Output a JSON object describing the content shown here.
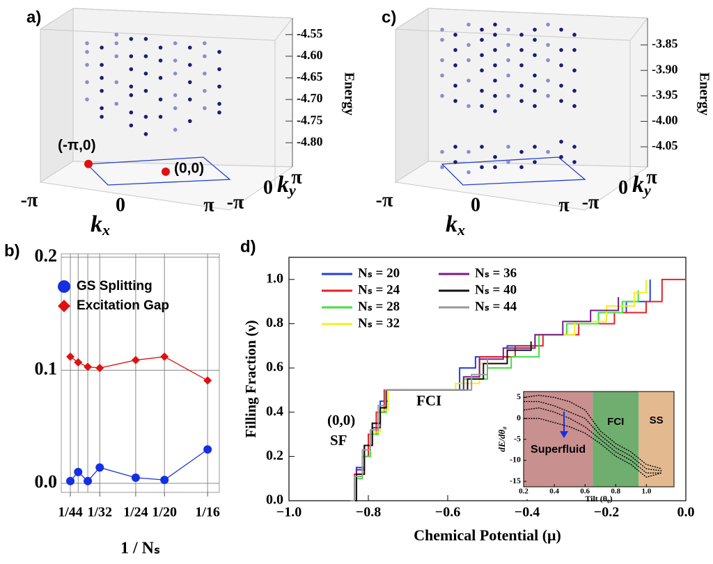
{
  "chart_data": [
    {
      "type": "scatter",
      "panel_label": "a)",
      "ylabel": "Energy",
      "ylim": [
        -4.88,
        -4.515
      ],
      "yticks": [
        {
          "value": -4.55,
          "label": "-4.55"
        },
        {
          "value": -4.6,
          "label": "-4.60"
        },
        {
          "value": -4.65,
          "label": "-4.65"
        },
        {
          "value": -4.7,
          "label": "-4.70"
        },
        {
          "value": -4.75,
          "label": "-4.75"
        },
        {
          "value": -4.8,
          "label": "-4.80"
        }
      ],
      "kx_ticks": [
        "-π",
        "0",
        "π"
      ],
      "ky_ticks": [
        "-π",
        "0",
        "π"
      ],
      "xlabel": "k",
      "xlabel_sub": "x",
      "zlabel": "k",
      "zlabel_sub": "y",
      "columns": [
        {
          "color": "#8c8cd0",
          "values": [
            -4.57,
            -4.59,
            -4.62,
            -4.66,
            -4.7
          ]
        },
        {
          "color": "#1c1c78",
          "values": [
            -4.58,
            -4.62,
            -4.65,
            -4.68,
            -4.72,
            -4.74
          ]
        },
        {
          "color": "#8c8cd0",
          "values": [
            -4.55,
            -4.57,
            -4.6,
            -4.66,
            -4.71
          ]
        },
        {
          "color": "#1c1c78",
          "values": [
            -4.56,
            -4.6,
            -4.63,
            -4.67,
            -4.69,
            -4.73,
            -4.76
          ]
        },
        {
          "color": "#1c1c78",
          "values": [
            -4.56,
            -4.6,
            -4.64,
            -4.68,
            -4.74,
            -4.78
          ]
        },
        {
          "color": "#1c1c78",
          "values": [
            -4.58,
            -4.61,
            -4.65,
            -4.7,
            -4.74
          ]
        },
        {
          "color": "#8c8cd0",
          "values": [
            -4.57,
            -4.61,
            -4.64,
            -4.69,
            -4.72,
            -4.77
          ]
        },
        {
          "color": "#1c1c78",
          "values": [
            -4.58,
            -4.62,
            -4.66,
            -4.7,
            -4.75
          ]
        },
        {
          "color": "#8c8cd0",
          "values": [
            -4.57,
            -4.6,
            -4.64,
            -4.68,
            -4.72
          ]
        },
        {
          "color": "#1c1c78",
          "values": [
            -4.59,
            -4.63,
            -4.67,
            -4.71,
            -4.73
          ]
        }
      ],
      "ground_states": [
        {
          "label": "(-π,0)",
          "value": -4.849,
          "color": "#e01010"
        },
        {
          "label": "(0,0)",
          "value": -4.867,
          "color": "#e01010"
        }
      ]
    },
    {
      "type": "line",
      "panel_label": "b)",
      "xlabel": "1 / Nₛ",
      "x": [
        0.02273,
        0.025,
        0.02778,
        0.03125,
        0.04167,
        0.05,
        0.0625
      ],
      "series": [
        {
          "name": "GS Splitting",
          "color": "#1530e0",
          "marker": "circle",
          "values": [
            0.002,
            0.01,
            0.002,
            0.014,
            0.005,
            0.003,
            0.03
          ]
        },
        {
          "name": "Excitation Gap",
          "color": "#e01010",
          "marker": "diamond",
          "values": [
            0.112,
            0.107,
            0.103,
            0.102,
            0.109,
            0.112,
            0.091
          ]
        }
      ],
      "xlim": [
        0.0201,
        0.0659
      ],
      "ylim": [
        -0.008,
        0.203
      ],
      "xticks": [
        {
          "value": 0.02273,
          "label": "1/44"
        },
        {
          "value": 0.03125,
          "label": "1/32"
        },
        {
          "value": 0.04167,
          "label": "1/24"
        },
        {
          "value": 0.05,
          "label": "1/20"
        },
        {
          "value": 0.0625,
          "label": "1/16"
        }
      ],
      "yticks": [
        {
          "value": 0,
          "label": "0.0"
        },
        {
          "value": 0.1,
          "label": "0.1"
        },
        {
          "value": 0.2,
          "label": "0.2"
        }
      ],
      "grid": true
    },
    {
      "type": "scatter",
      "panel_label": "c)",
      "ylabel": "Energy",
      "ylim": [
        -4.11,
        -3.8
      ],
      "yticks": [
        {
          "value": -3.85,
          "label": "-3.85"
        },
        {
          "value": -3.9,
          "label": "-3.90"
        },
        {
          "value": -3.95,
          "label": "-3.95"
        },
        {
          "value": -4.0,
          "label": "-4.00"
        },
        {
          "value": -4.05,
          "label": "-4.05"
        }
      ],
      "kx_ticks": [
        "-π",
        "0",
        "π"
      ],
      "ky_ticks": [
        "-π",
        "0",
        "π"
      ],
      "xlabel": "k",
      "xlabel_sub": "x",
      "zlabel": "k",
      "zlabel_sub": "y",
      "columns": [
        {
          "color": "#8c8cd0",
          "values": [
            -3.82,
            -3.84,
            -3.88,
            -3.91,
            -3.95,
            -4.06,
            -4.09
          ]
        },
        {
          "color": "#1c1c78",
          "values": [
            -3.83,
            -3.86,
            -3.89,
            -3.93,
            -3.96,
            -4.05,
            -4.08
          ]
        },
        {
          "color": "#8c8cd0",
          "values": [
            -3.81,
            -3.85,
            -3.88,
            -3.92,
            -3.97,
            -4.06,
            -4.1
          ]
        },
        {
          "color": "#1c1c78",
          "values": [
            -3.82,
            -3.84,
            -3.87,
            -3.9,
            -3.94,
            -3.97,
            -4.05,
            -4.09
          ]
        },
        {
          "color": "#1c1c78",
          "values": [
            -3.81,
            -3.83,
            -3.86,
            -3.89,
            -3.92,
            -3.95,
            -3.98,
            -4.07,
            -4.09
          ]
        },
        {
          "color": "#8c8cd0",
          "values": [
            -3.82,
            -3.85,
            -3.88,
            -3.91,
            -3.95,
            -4.05,
            -4.08
          ]
        },
        {
          "color": "#1c1c78",
          "values": [
            -3.83,
            -3.86,
            -3.89,
            -3.93,
            -3.96,
            -4.06,
            -4.09
          ]
        },
        {
          "color": "#1c1c78",
          "values": [
            -3.82,
            -3.84,
            -3.87,
            -3.91,
            -3.94,
            -3.97,
            -4.05,
            -4.08
          ]
        },
        {
          "color": "#8c8cd0",
          "values": [
            -3.81,
            -3.85,
            -3.88,
            -3.92,
            -3.95,
            -4.06
          ]
        },
        {
          "color": "#1c1c78",
          "values": [
            -3.82,
            -3.86,
            -3.89,
            -3.93,
            -3.96,
            -4.04,
            -4.07
          ]
        },
        {
          "color": "#1c1c78",
          "values": [
            -3.83,
            -3.86,
            -3.9,
            -3.94,
            -3.97,
            -4.05,
            -4.08
          ]
        }
      ]
    },
    {
      "type": "step",
      "panel_label": "d)",
      "xlabel": "Chemical Potential (μ)",
      "ylabel": "Filling Fraction (ν)",
      "xlim": [
        -1.0,
        0.0
      ],
      "ylim": [
        0,
        1.1
      ],
      "xticks": [
        {
          "value": -1.0,
          "label": "−1.0"
        },
        {
          "value": -0.8,
          "label": "−0.8"
        },
        {
          "value": -0.6,
          "label": "−0.6"
        },
        {
          "value": -0.4,
          "label": "−0.4"
        },
        {
          "value": -0.2,
          "label": "−0.2"
        },
        {
          "value": 0,
          "label": "0.0"
        }
      ],
      "yticks": [
        {
          "value": 0,
          "label": "0.0"
        },
        0.2,
        0.4,
        0.6,
        0.8,
        {
          "value": 1.0,
          "label": "1.0"
        }
      ],
      "legend_columns": 2,
      "series": [
        {
          "name": "Nₛ = 20",
          "color": "#1f3fe0",
          "x": [
            -0.845,
            -0.83,
            -0.81,
            -0.79,
            -0.77,
            -0.75,
            -0.57,
            -0.53,
            -0.45,
            -0.38,
            -0.3,
            -0.22,
            -0.15,
            -0.09
          ],
          "values": [
            0,
            0.15,
            0.25,
            0.35,
            0.45,
            0.5,
            0.6,
            0.65,
            0.7,
            0.75,
            0.8,
            0.85,
            0.9,
            1.0
          ]
        },
        {
          "name": "Nₛ = 24",
          "color": "#e82020",
          "x": [
            -0.845,
            -0.835,
            -0.815,
            -0.8,
            -0.78,
            -0.76,
            -0.55,
            -0.52,
            -0.43,
            -0.36,
            -0.27,
            -0.18,
            -0.1,
            -0.06,
            0
          ],
          "values": [
            0,
            0.12,
            0.2,
            0.3,
            0.4,
            0.5,
            0.55,
            0.65,
            0.7,
            0.75,
            0.8,
            0.85,
            0.9,
            1.0,
            1.0
          ]
        },
        {
          "name": "Nₛ = 28",
          "color": "#40e040",
          "x": [
            -0.845,
            -0.83,
            -0.815,
            -0.795,
            -0.775,
            -0.755,
            -0.56,
            -0.5,
            -0.44,
            -0.37,
            -0.3,
            -0.22,
            -0.16,
            -0.12
          ],
          "values": [
            0,
            0.1,
            0.2,
            0.3,
            0.4,
            0.5,
            0.55,
            0.6,
            0.65,
            0.75,
            0.8,
            0.85,
            0.9,
            0.95
          ]
        },
        {
          "name": "Nₛ = 32",
          "color": "#f0f020",
          "x": [
            -0.845,
            -0.83,
            -0.81,
            -0.79,
            -0.77,
            -0.75,
            -0.58,
            -0.52,
            -0.45,
            -0.38,
            -0.28,
            -0.2,
            -0.13,
            -0.1
          ],
          "values": [
            0,
            0.12,
            0.25,
            0.31,
            0.41,
            0.5,
            0.53,
            0.62,
            0.69,
            0.75,
            0.81,
            0.88,
            0.94,
            1.0
          ]
        },
        {
          "name": "Nₛ = 36",
          "color": "#7a1a8a",
          "x": [
            -0.845,
            -0.83,
            -0.81,
            -0.79,
            -0.77,
            -0.755,
            -0.56,
            -0.52,
            -0.46,
            -0.38,
            -0.31,
            -0.24,
            -0.17
          ],
          "values": [
            0,
            0.14,
            0.25,
            0.33,
            0.42,
            0.5,
            0.56,
            0.64,
            0.69,
            0.75,
            0.81,
            0.86,
            0.92
          ]
        },
        {
          "name": "Nₛ = 40",
          "color": "#111111",
          "x": [
            -0.845,
            -0.83,
            -0.81,
            -0.79,
            -0.77,
            -0.755,
            -0.55,
            -0.51,
            -0.45,
            -0.39
          ],
          "values": [
            0,
            0.12,
            0.25,
            0.35,
            0.42,
            0.5,
            0.55,
            0.62,
            0.68,
            0.72
          ]
        },
        {
          "name": "Nₛ = 44",
          "color": "#999999",
          "x": [
            -0.845,
            -0.835,
            -0.815,
            -0.795,
            -0.775,
            -0.757,
            -0.54,
            -0.5
          ],
          "values": [
            0,
            0.11,
            0.23,
            0.32,
            0.43,
            0.5,
            0.57,
            0.64
          ]
        }
      ],
      "annotations": [
        "(0,0)",
        "SF",
        "FCI"
      ]
    },
    {
      "type": "line",
      "xlabel": "Tilt (θ₀)",
      "ylabel": "dE/dθ₀",
      "xlim": [
        0.2,
        1.18
      ],
      "ylim": [
        -16.3,
        6.4
      ],
      "xticks": [
        0.2,
        0.4,
        0.6,
        0.8,
        {
          "value": 1.0,
          "label": "1.0"
        }
      ],
      "yticks": [
        5,
        0,
        -5,
        -10,
        -15
      ],
      "regions": [
        {
          "label": "Superfluid",
          "from": 0.2,
          "to": 0.65,
          "color": "#c99090"
        },
        {
          "label": "FCI",
          "from": 0.65,
          "to": 0.95,
          "color": "#6fae6f"
        },
        {
          "label": "SS",
          "from": 0.95,
          "to": 1.18,
          "color": "#e3b98f"
        }
      ],
      "x": [
        0.2,
        0.3,
        0.4,
        0.5,
        0.6,
        0.7,
        0.8,
        0.9,
        1.0,
        1.1
      ],
      "series": [
        {
          "color": "#000000",
          "values": [
            5,
            5.5,
            5,
            4,
            2,
            -3,
            -6,
            -8,
            -11,
            -12
          ]
        },
        {
          "color": "#000000",
          "values": [
            4,
            4,
            3,
            1.5,
            0,
            -4,
            -7,
            -9,
            -12,
            -12.5
          ]
        },
        {
          "color": "#000000",
          "values": [
            2,
            2.5,
            1.5,
            0,
            -2,
            -5,
            -8,
            -10,
            -13,
            -13
          ]
        },
        {
          "color": "#000000",
          "values": [
            0,
            0,
            -1,
            -2,
            -3.5,
            -6,
            -9,
            -11,
            -14,
            -13
          ]
        }
      ]
    }
  ]
}
